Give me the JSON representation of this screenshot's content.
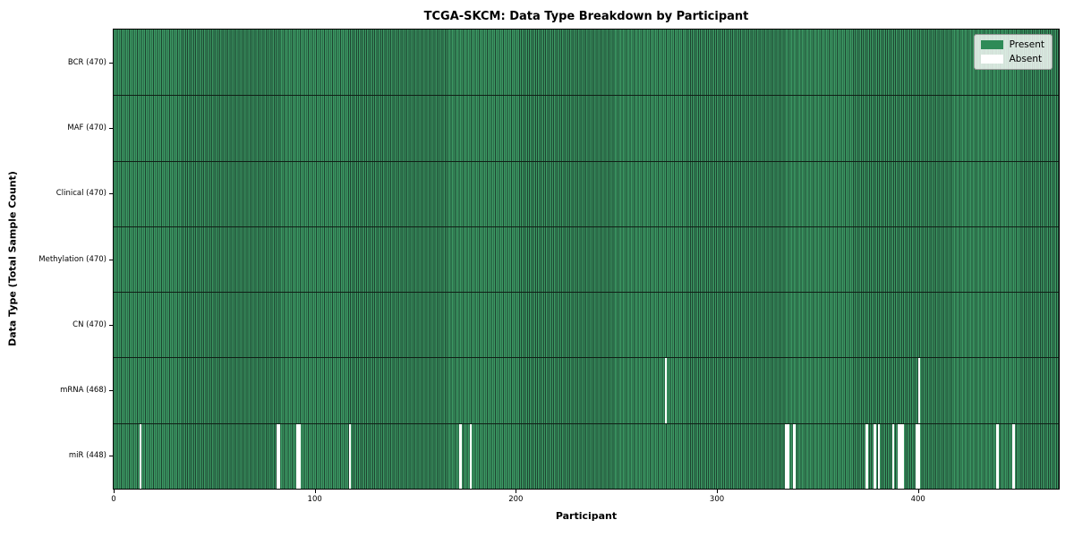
{
  "chart_data": {
    "type": "heatmap",
    "title": "TCGA-SKCM: Data Type Breakdown by Participant",
    "xlabel": "Participant",
    "ylabel": "Data Type (Total Sample Count)",
    "n_participants": 470,
    "x_ticks": [
      0,
      100,
      200,
      300,
      400
    ],
    "x_range": [
      0,
      470
    ],
    "grid": false,
    "legend_position": "upper right",
    "rows": [
      {
        "label": "BCR (470)",
        "data_type": "BCR",
        "present_count": 470,
        "absent_participants": []
      },
      {
        "label": "MAF (470)",
        "data_type": "MAF",
        "present_count": 470,
        "absent_participants": []
      },
      {
        "label": "Clinical (470)",
        "data_type": "Clinical",
        "present_count": 470,
        "absent_participants": []
      },
      {
        "label": "Methylation (470)",
        "data_type": "Methylation",
        "present_count": 470,
        "absent_participants": []
      },
      {
        "label": "CN (470)",
        "data_type": "CN",
        "present_count": 470,
        "absent_participants": []
      },
      {
        "label": "mRNA (468)",
        "data_type": "mRNA",
        "present_count": 468,
        "absent_participants": [
          274,
          400
        ]
      },
      {
        "label": "miR (448)",
        "data_type": "miR",
        "present_count": 448,
        "absent_participants": [
          13,
          81,
          82,
          91,
          92,
          117,
          172,
          177,
          334,
          335,
          338,
          374,
          378,
          380,
          387,
          390,
          391,
          392,
          399,
          400,
          439,
          447
        ]
      }
    ],
    "colors": {
      "present": "#2e8b57",
      "present_stripe": "#3c9a64",
      "bar_edge": "#1d4330",
      "absent": "#ffffff",
      "row_divider": "#101f16",
      "axes_edge": "#000000"
    }
  },
  "legend": {
    "items": [
      {
        "label": "Present",
        "color": "#2e8b57"
      },
      {
        "label": "Absent",
        "color": "#ffffff"
      }
    ]
  }
}
